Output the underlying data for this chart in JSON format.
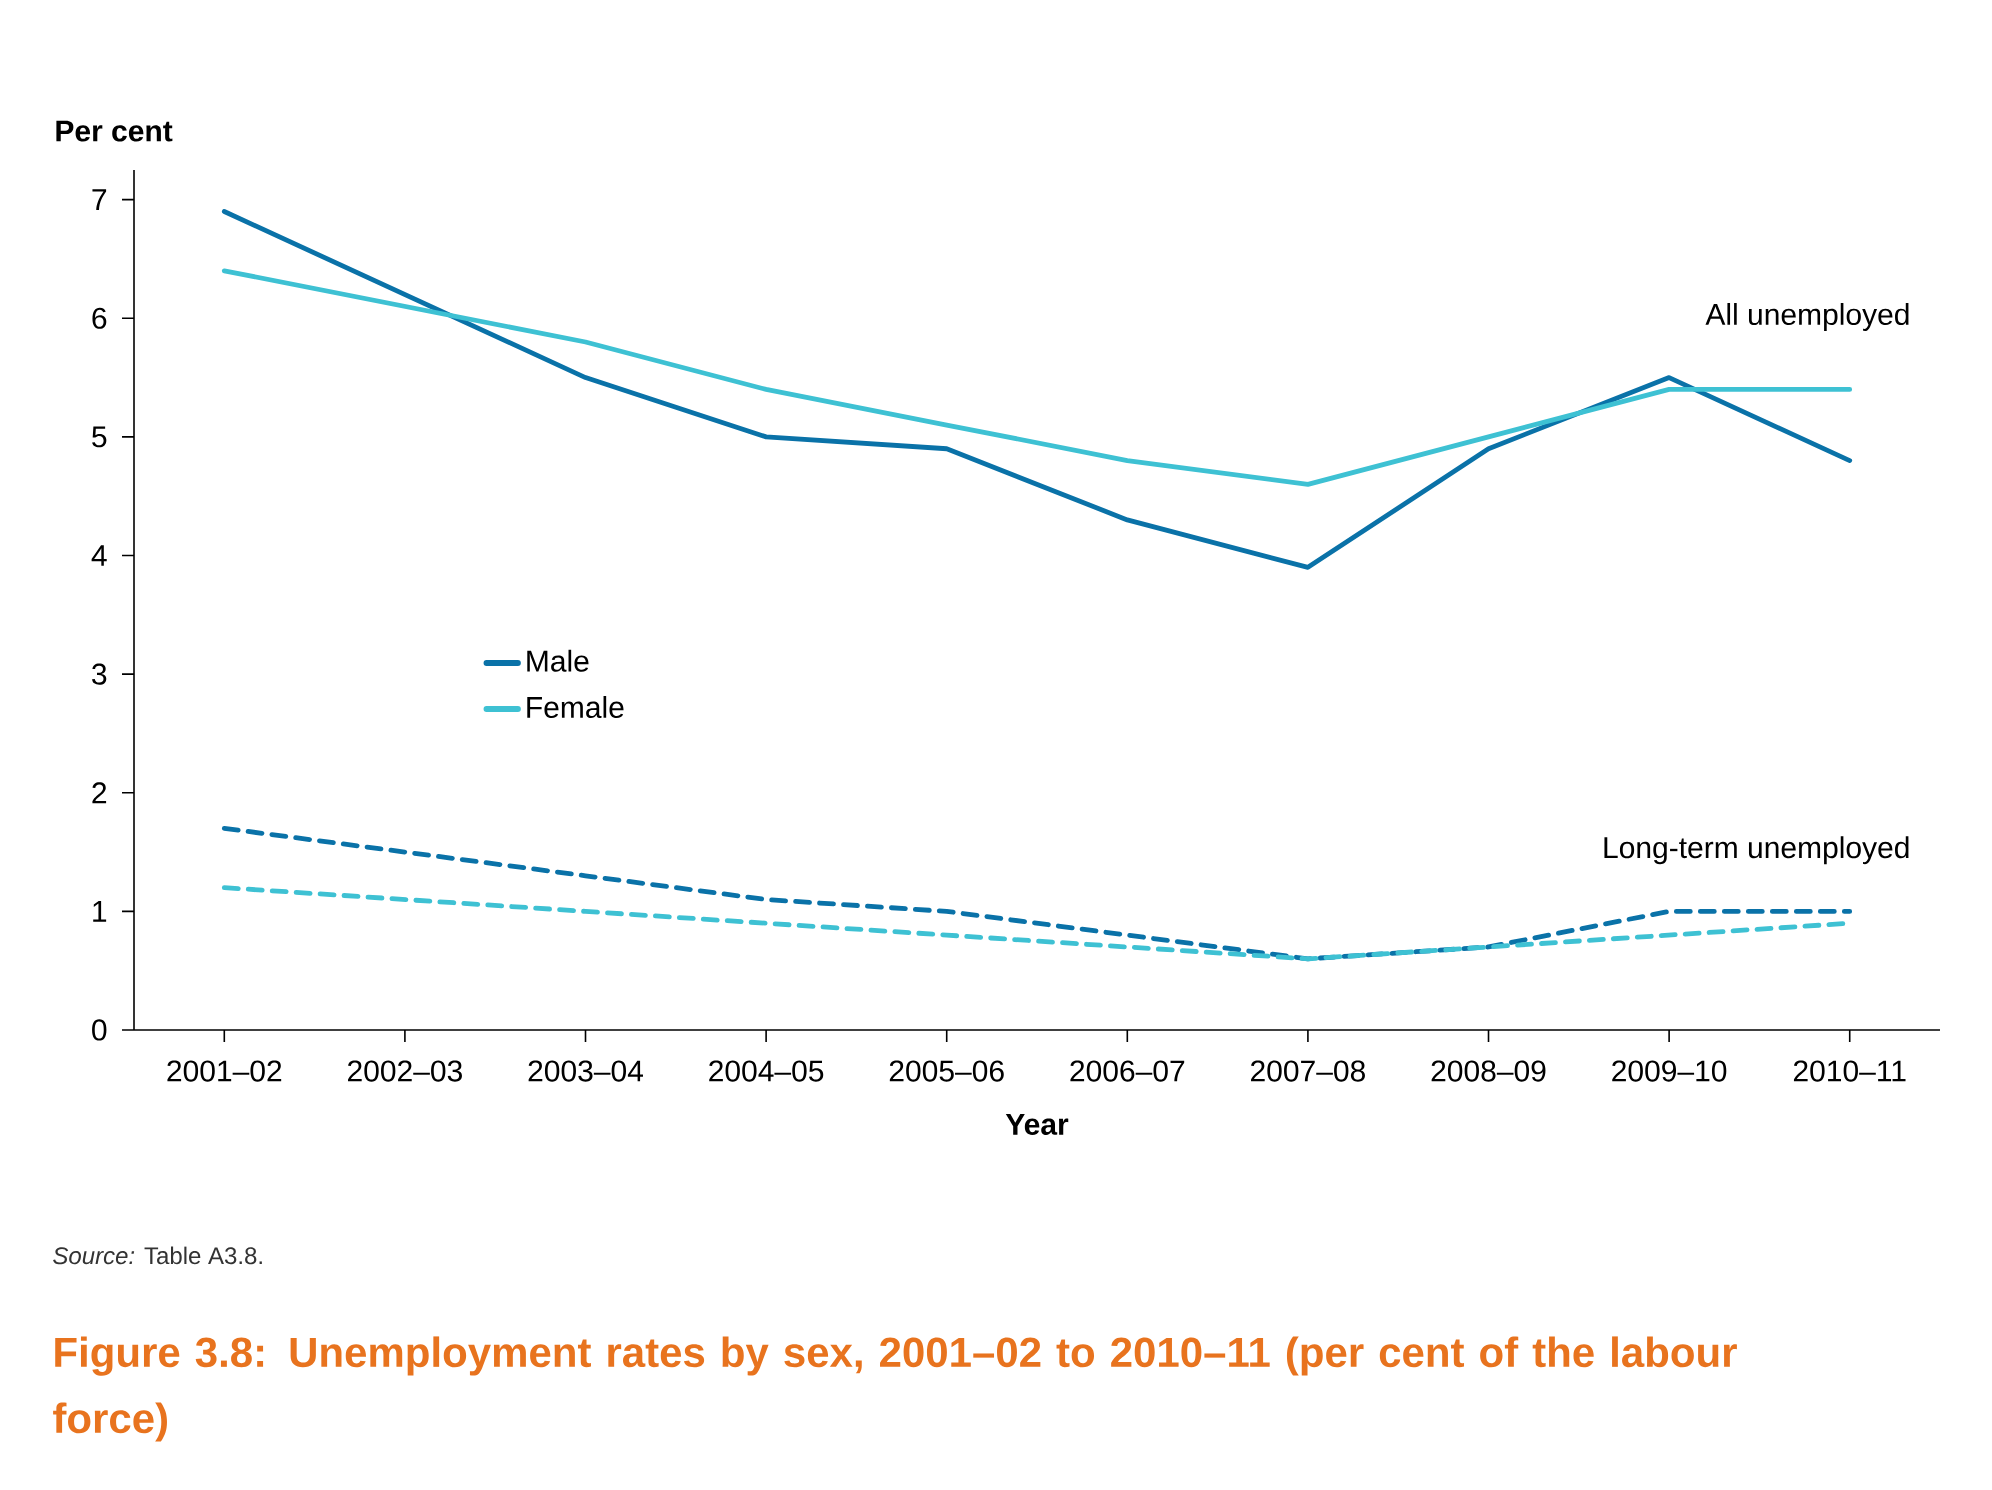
{
  "chart_data": {
    "type": "line",
    "title": "Figure 3.8: Unemployment rates by sex, 2001–02 to 2010–11 (per cent of the labour force)",
    "xlabel": "Year",
    "ylabel": "Per cent",
    "categories": [
      "2001–02",
      "2002–03",
      "2003–04",
      "2004–05",
      "2005–06",
      "2006–07",
      "2007–08",
      "2008–09",
      "2009–10",
      "2010–11"
    ],
    "series": [
      {
        "name": "Male",
        "color": "#0a72a8",
        "values": [
          6.9,
          6.2,
          5.5,
          5.0,
          4.9,
          4.3,
          3.9,
          4.9,
          5.5,
          4.8
        ]
      },
      {
        "name": "Female",
        "color": "#3ec1d3",
        "values": [
          6.4,
          6.1,
          5.8,
          5.4,
          5.1,
          4.8,
          4.6,
          5.0,
          5.4,
          5.4
        ]
      },
      {
        "color": "#0a72a8",
        "line_style": "dashed",
        "values": [
          1.7,
          1.5,
          1.3,
          1.1,
          1.0,
          0.8,
          0.6,
          0.7,
          1.0,
          1.0
        ]
      },
      {
        "color": "#3ec1d3",
        "line_style": "dashed",
        "values": [
          1.2,
          1.1,
          1.0,
          0.9,
          0.8,
          0.7,
          0.6,
          0.7,
          0.8,
          0.9
        ]
      }
    ],
    "ylim": [
      0,
      7.25
    ],
    "yticks": [
      0,
      1,
      2,
      3,
      4,
      5,
      6,
      7
    ],
    "grid": false,
    "legend": "center left",
    "marker": "none",
    "annotations": [
      "All unemployed",
      "Long-term unemployed",
      "*Source:* Table A3.8."
    ]
  }
}
